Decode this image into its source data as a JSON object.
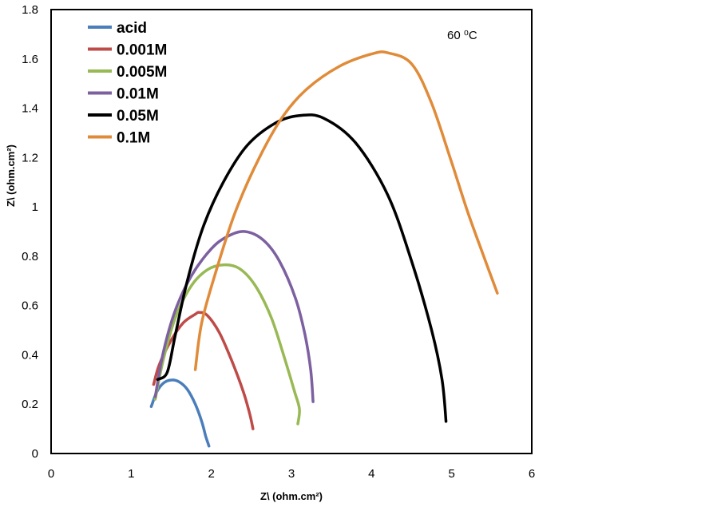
{
  "chart_data": {
    "type": "line",
    "xlabel": "Z\\ (ohm.cm²)",
    "ylabel": "Z\\ (ohm.cm²)",
    "annotation": "60 ⁰C",
    "xlim": [
      0,
      6
    ],
    "ylim": [
      0,
      1.8
    ],
    "xticks": [
      "0",
      "1",
      "2",
      "3",
      "4",
      "5",
      "6"
    ],
    "yticks": [
      "0",
      "0.2",
      "0.4",
      "0.6",
      "0.8",
      "1",
      "1.2",
      "1.4",
      "1.6",
      "1.8"
    ],
    "grid": false,
    "legend_position": "top-left",
    "series": [
      {
        "name": "acid",
        "color": "#4a7ebb",
        "points": [
          [
            1.25,
            0.19
          ],
          [
            1.32,
            0.25
          ],
          [
            1.4,
            0.285
          ],
          [
            1.5,
            0.298
          ],
          [
            1.6,
            0.29
          ],
          [
            1.7,
            0.26
          ],
          [
            1.8,
            0.2
          ],
          [
            1.88,
            0.13
          ],
          [
            1.93,
            0.07
          ],
          [
            1.96,
            0.04
          ],
          [
            1.97,
            0.03
          ]
        ]
      },
      {
        "name": "0.001M",
        "color": "#be4b48",
        "points": [
          [
            1.28,
            0.28
          ],
          [
            1.35,
            0.36
          ],
          [
            1.5,
            0.46
          ],
          [
            1.65,
            0.53
          ],
          [
            1.8,
            0.565
          ],
          [
            1.85,
            0.572
          ],
          [
            1.95,
            0.56
          ],
          [
            2.1,
            0.49
          ],
          [
            2.25,
            0.38
          ],
          [
            2.4,
            0.25
          ],
          [
            2.48,
            0.16
          ],
          [
            2.52,
            0.1
          ]
        ]
      },
      {
        "name": "0.005M",
        "color": "#98b954",
        "points": [
          [
            1.3,
            0.22
          ],
          [
            1.4,
            0.38
          ],
          [
            1.55,
            0.55
          ],
          [
            1.75,
            0.68
          ],
          [
            1.95,
            0.745
          ],
          [
            2.15,
            0.765
          ],
          [
            2.35,
            0.75
          ],
          [
            2.55,
            0.68
          ],
          [
            2.75,
            0.55
          ],
          [
            2.92,
            0.38
          ],
          [
            3.04,
            0.25
          ],
          [
            3.1,
            0.18
          ],
          [
            3.08,
            0.12
          ]
        ]
      },
      {
        "name": "0.01M",
        "color": "#7d60a0",
        "points": [
          [
            1.3,
            0.23
          ],
          [
            1.4,
            0.41
          ],
          [
            1.55,
            0.58
          ],
          [
            1.75,
            0.72
          ],
          [
            2.0,
            0.83
          ],
          [
            2.2,
            0.88
          ],
          [
            2.42,
            0.9
          ],
          [
            2.65,
            0.865
          ],
          [
            2.85,
            0.78
          ],
          [
            3.05,
            0.63
          ],
          [
            3.17,
            0.48
          ],
          [
            3.24,
            0.34
          ],
          [
            3.27,
            0.21
          ]
        ]
      },
      {
        "name": "0.05M",
        "color": "#000000",
        "points": [
          [
            1.33,
            0.3
          ],
          [
            1.45,
            0.33
          ],
          [
            1.55,
            0.48
          ],
          [
            1.7,
            0.7
          ],
          [
            1.9,
            0.92
          ],
          [
            2.15,
            1.1
          ],
          [
            2.45,
            1.25
          ],
          [
            2.8,
            1.34
          ],
          [
            3.1,
            1.37
          ],
          [
            3.4,
            1.36
          ],
          [
            3.8,
            1.26
          ],
          [
            4.2,
            1.05
          ],
          [
            4.5,
            0.78
          ],
          [
            4.75,
            0.5
          ],
          [
            4.88,
            0.3
          ],
          [
            4.93,
            0.13
          ]
        ]
      },
      {
        "name": "0.1M",
        "color": "#e08b39",
        "points": [
          [
            1.8,
            0.34
          ],
          [
            1.88,
            0.53
          ],
          [
            2.05,
            0.73
          ],
          [
            2.3,
            0.98
          ],
          [
            2.6,
            1.2
          ],
          [
            2.9,
            1.37
          ],
          [
            3.2,
            1.48
          ],
          [
            3.6,
            1.57
          ],
          [
            4.0,
            1.62
          ],
          [
            4.2,
            1.625
          ],
          [
            4.5,
            1.58
          ],
          [
            4.75,
            1.42
          ],
          [
            5.0,
            1.18
          ],
          [
            5.2,
            0.98
          ],
          [
            5.4,
            0.8
          ],
          [
            5.57,
            0.65
          ]
        ]
      }
    ]
  }
}
